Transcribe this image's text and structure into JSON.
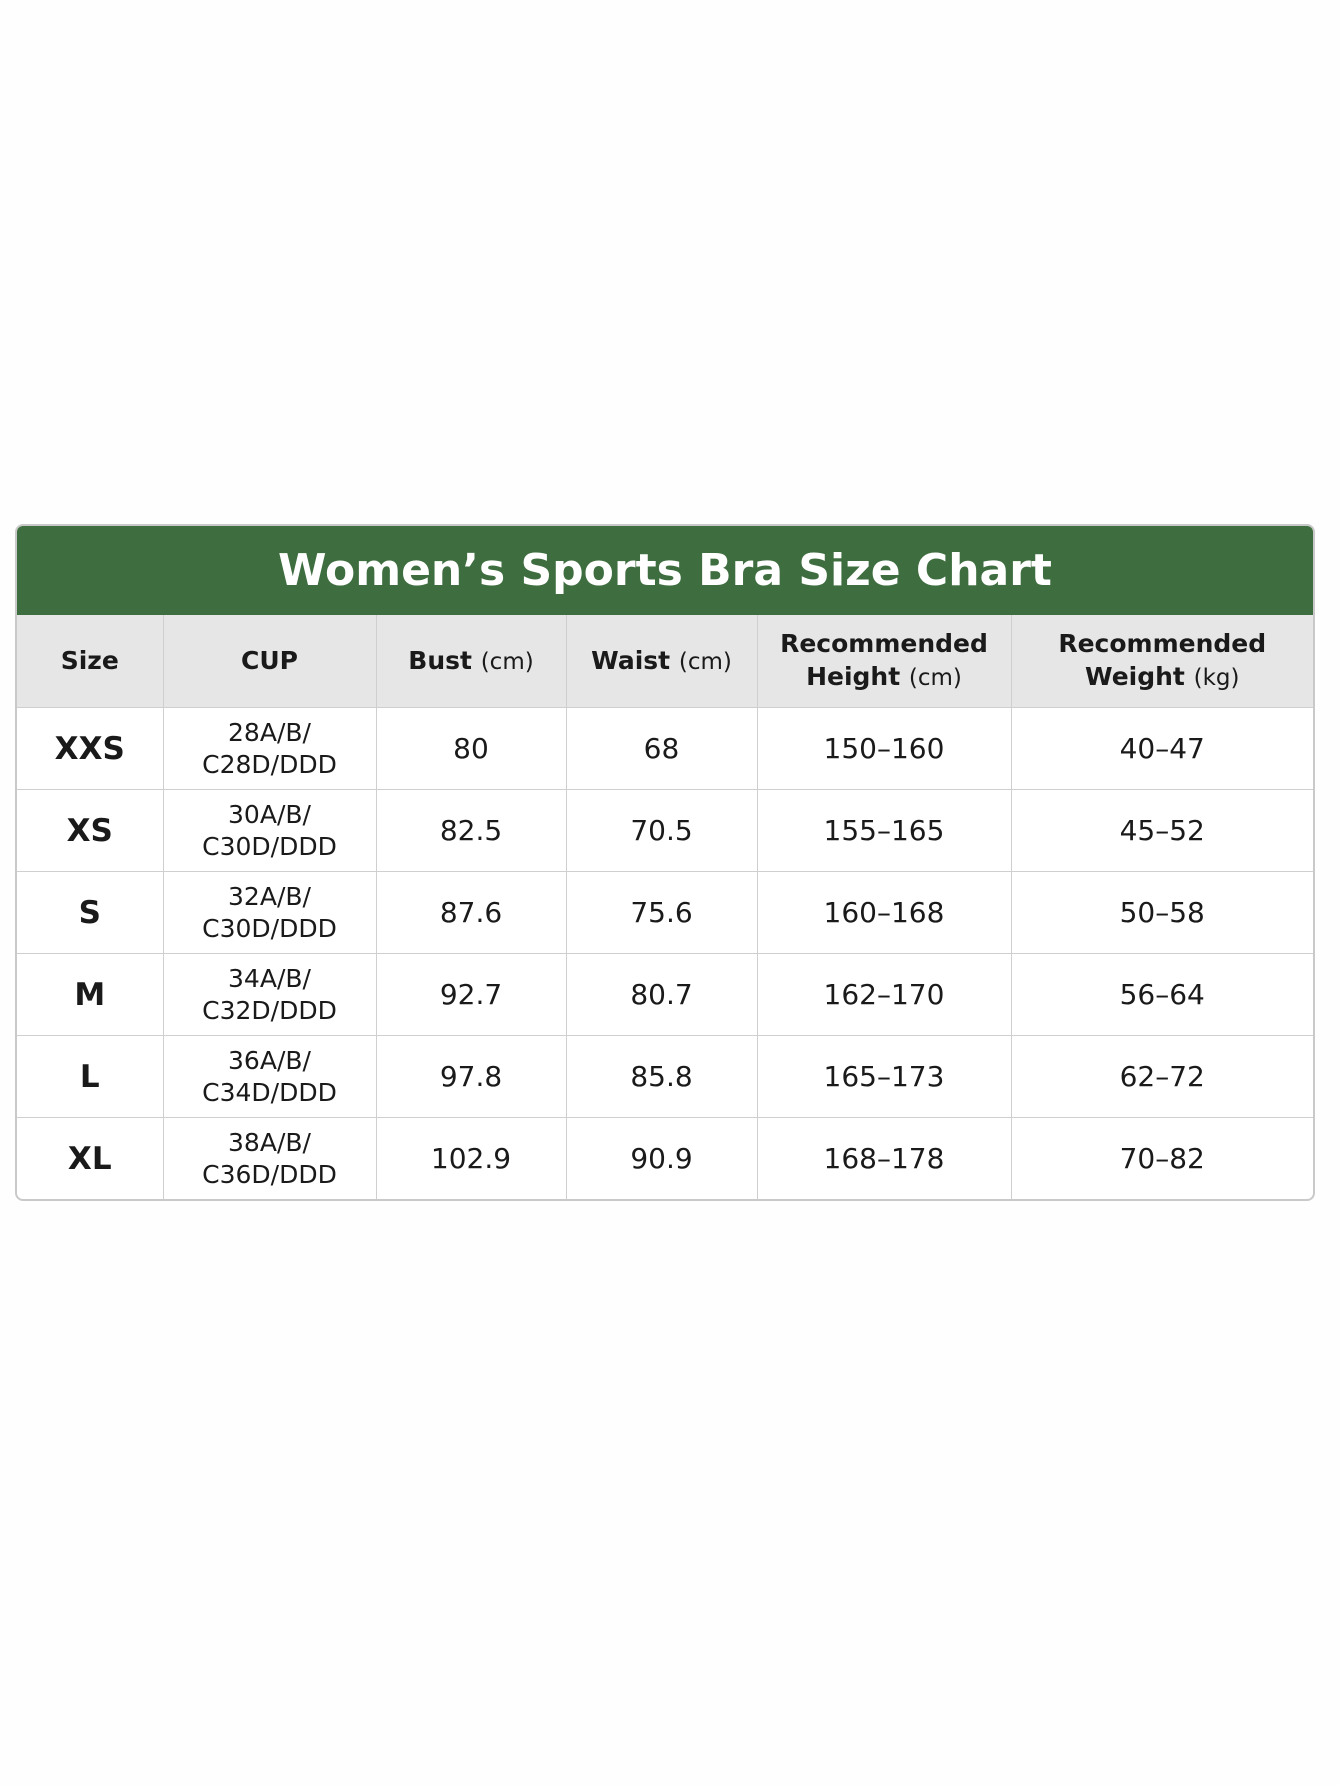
{
  "title": "Women’s Sports Bra Size Chart",
  "table": {
    "header": [
      {
        "text": "Size"
      },
      {
        "text": "CUP"
      },
      {
        "text": "Bust",
        "unit": "(cm)"
      },
      {
        "text": "Waist",
        "unit": "(cm)"
      },
      {
        "text": "Recommended Height",
        "unit": "(cm)"
      },
      {
        "text": "Recommended Weight",
        "unit": "(kg)"
      }
    ],
    "rows": [
      [
        "XXS",
        [
          "28A/B/",
          "C28D/DDD"
        ],
        "80",
        "68",
        "150–160",
        "40–47"
      ],
      [
        "XS",
        [
          "30A/B/",
          "C30D/DDD"
        ],
        "82.5",
        "70.5",
        "155–165",
        "45–52"
      ],
      [
        "S",
        [
          "32A/B/",
          "C30D/DDD"
        ],
        "87.6",
        "75.6",
        "160–168",
        "50–58"
      ],
      [
        "M",
        [
          "34A/B/",
          "C32D/DDD"
        ],
        "92.7",
        "80.7",
        "162–170",
        "56–64"
      ],
      [
        "L",
        [
          "36A/B/",
          "C34D/DDD"
        ],
        "97.8",
        "85.8",
        "165–173",
        "62–72"
      ],
      [
        "XL",
        [
          "38A/B/",
          "C36D/DDD"
        ],
        "102.9",
        "90.9",
        "168–178",
        "70–82"
      ]
    ]
  }
}
